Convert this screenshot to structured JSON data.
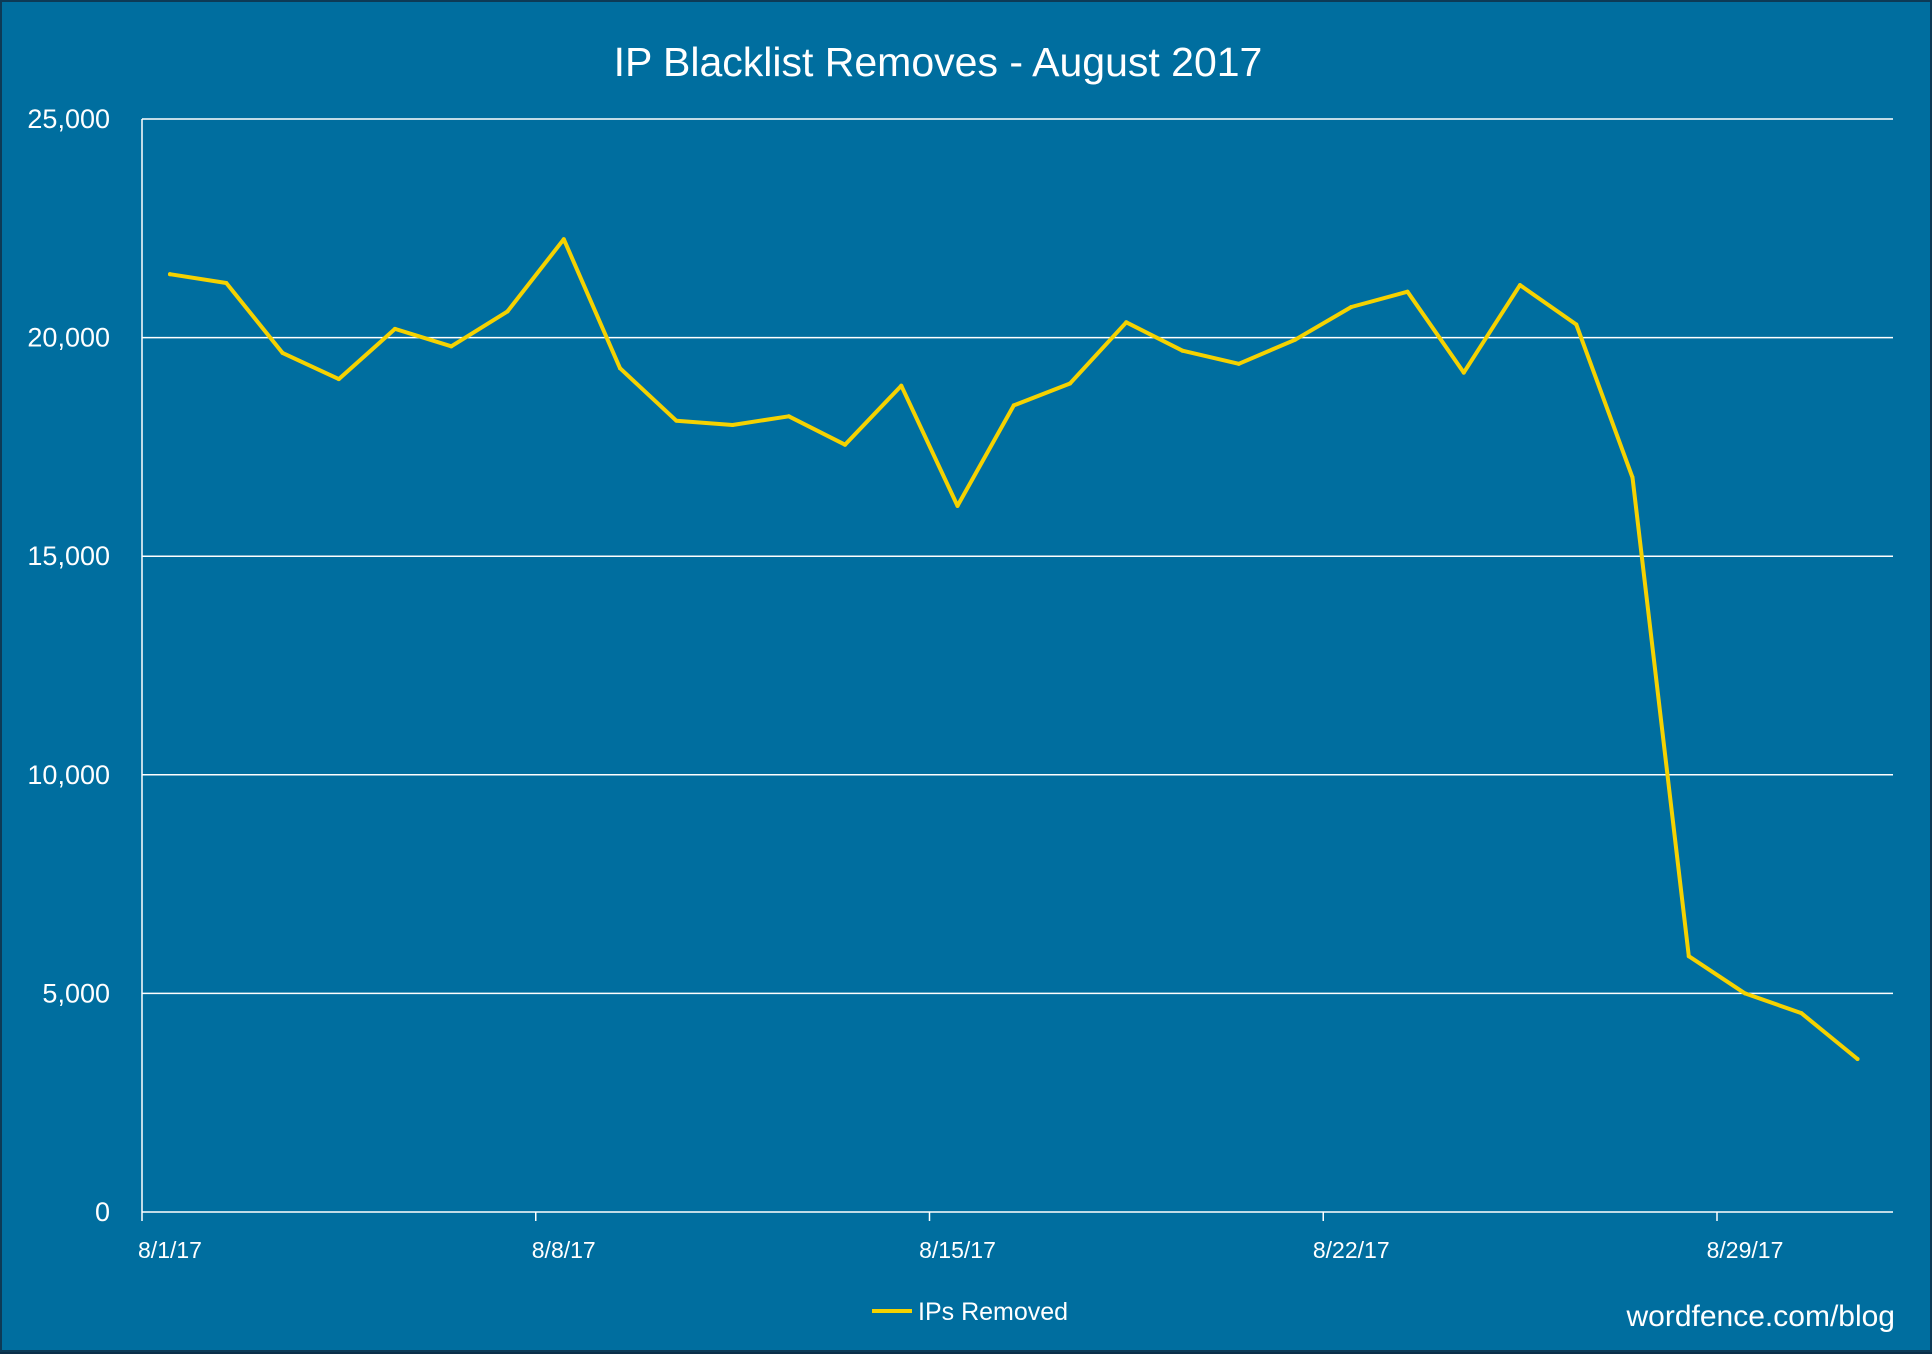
{
  "page": {
    "background": "#006e9f",
    "border_color": "#0d3a56",
    "credit": "wordfence.com/blog"
  },
  "chart_data": {
    "type": "line",
    "title": "IP Blacklist Removes - August 2017",
    "xlabel": "",
    "ylabel": "",
    "ylim": [
      0,
      25000
    ],
    "yticks": [
      0,
      5000,
      10000,
      15000,
      20000,
      25000
    ],
    "ytick_labels": [
      "0",
      "5,000",
      "10,000",
      "15,000",
      "20,000",
      "25,000"
    ],
    "xtick_labels": [
      "8/1/17",
      "8/8/17",
      "8/15/17",
      "8/22/17",
      "8/29/17"
    ],
    "x": [
      "8/1/17",
      "8/2/17",
      "8/3/17",
      "8/4/17",
      "8/5/17",
      "8/6/17",
      "8/7/17",
      "8/8/17",
      "8/9/17",
      "8/10/17",
      "8/11/17",
      "8/12/17",
      "8/13/17",
      "8/14/17",
      "8/15/17",
      "8/16/17",
      "8/17/17",
      "8/18/17",
      "8/19/17",
      "8/20/17",
      "8/21/17",
      "8/22/17",
      "8/23/17",
      "8/24/17",
      "8/25/17",
      "8/26/17",
      "8/27/17",
      "8/28/17",
      "8/29/17",
      "8/30/17",
      "8/31/17"
    ],
    "grid": true,
    "legend_position": "bottom",
    "series": [
      {
        "name": "IPs Removed",
        "color": "#f5d200",
        "values": [
          21450,
          21250,
          19650,
          19050,
          20200,
          19800,
          20600,
          22250,
          19300,
          18100,
          18000,
          18200,
          17550,
          18900,
          16150,
          18450,
          18950,
          20350,
          19700,
          19400,
          19950,
          20700,
          21050,
          19200,
          21200,
          20300,
          16800,
          5850,
          5000,
          4550,
          3500
        ]
      }
    ]
  }
}
